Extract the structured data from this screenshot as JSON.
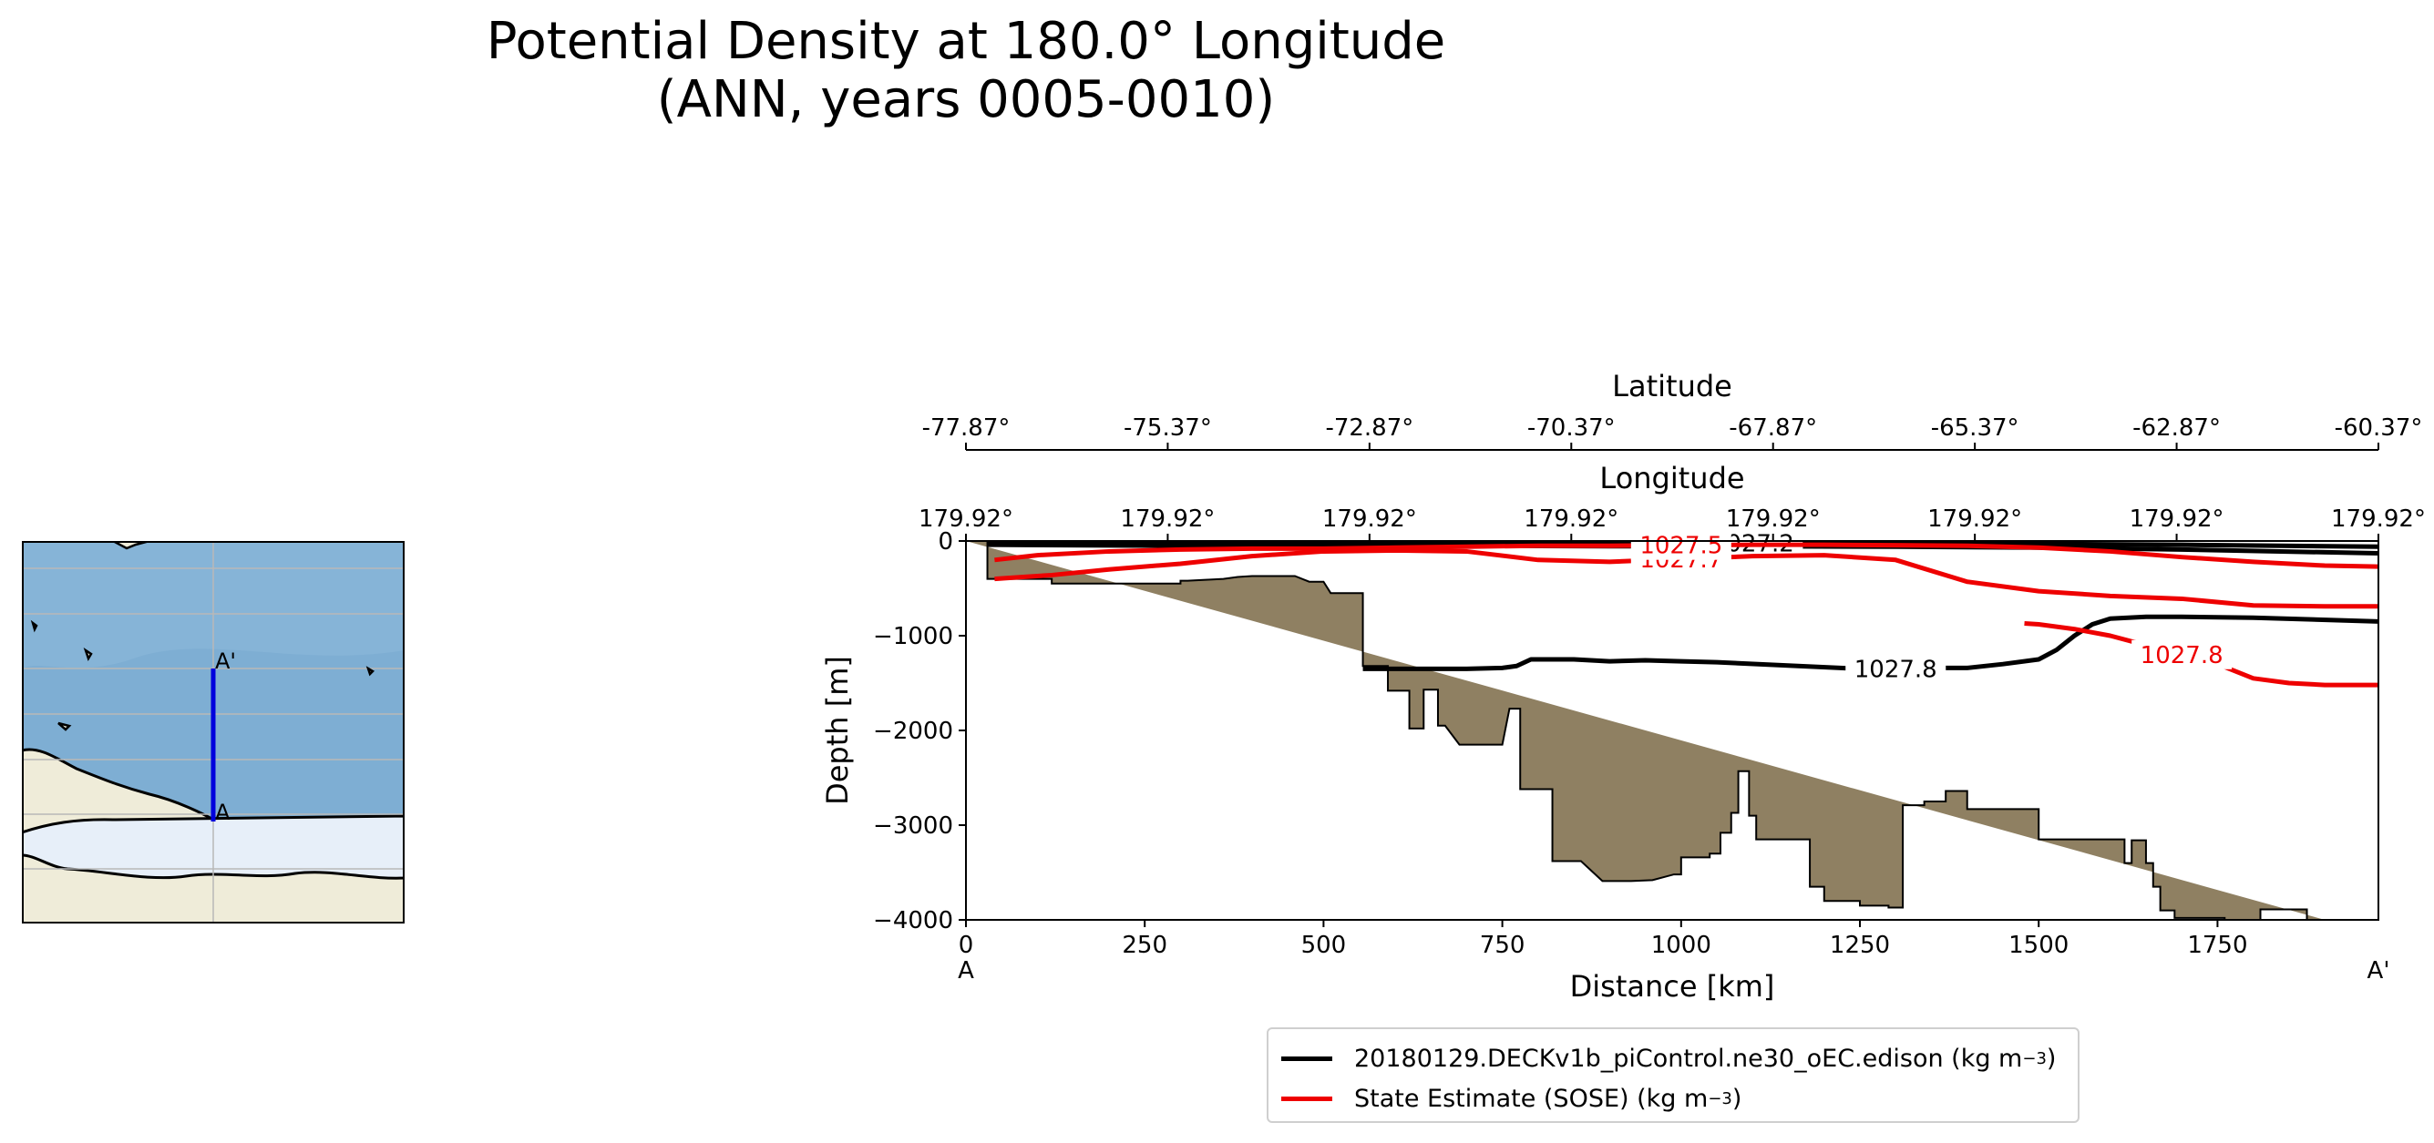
{
  "title": {
    "line1": "Potential Density at 180.0° Longitude",
    "line2": "(ANN, years 0005-0010)"
  },
  "inset_map": {
    "label_start": "A",
    "label_end": "A'",
    "colors": {
      "ocean": "#7eaed3",
      "land": "#efecd9",
      "ice": "#e7eff9",
      "section": "#0000dd"
    }
  },
  "chart_data": {
    "type": "line",
    "title": "Potential Density at 180.0° Longitude (ANN, years 0005-0010)",
    "xlabel": "Distance [km]",
    "ylabel": "Depth [m]",
    "xlim": [
      0,
      1975
    ],
    "ylim": [
      -4000,
      0
    ],
    "xticks": [
      0,
      250,
      500,
      750,
      1000,
      1250,
      1500,
      1750
    ],
    "yticks": [
      0,
      -1000,
      -2000,
      -3000,
      -4000
    ],
    "ytick_labels": [
      "0",
      "−1000",
      "−2000",
      "−3000",
      "−4000"
    ],
    "x_end_labels": {
      "start": "A",
      "end": "A'"
    },
    "secondary_axes": [
      {
        "label": "Longitude",
        "ticks": [
          "179.92°",
          "179.92°",
          "179.92°",
          "179.92°",
          "179.92°",
          "179.92°",
          "179.92°",
          "179.92°"
        ]
      },
      {
        "label": "Latitude",
        "ticks": [
          "-77.87°",
          "-75.37°",
          "-72.87°",
          "-70.37°",
          "-67.87°",
          "-65.37°",
          "-62.87°",
          "-60.37°"
        ]
      }
    ],
    "bathymetry": {
      "color": "#8f8062",
      "x": [
        0,
        10,
        30,
        30,
        120,
        120,
        300,
        300,
        310,
        360,
        380,
        400,
        460,
        480,
        500,
        510,
        555,
        555,
        590,
        590,
        620,
        620,
        640,
        640,
        660,
        660,
        670,
        690,
        750,
        750,
        760,
        765,
        775,
        775,
        780,
        780,
        820,
        820,
        860,
        890,
        930,
        960,
        990,
        1000,
        1000,
        1040,
        1040,
        1055,
        1055,
        1070,
        1070,
        1080,
        1080,
        1095,
        1095,
        1105,
        1105,
        1180,
        1180,
        1200,
        1200,
        1250,
        1250,
        1290,
        1290,
        1310,
        1310,
        1340,
        1340,
        1370,
        1370,
        1400,
        1400,
        1430,
        1430,
        1500,
        1500,
        1620,
        1620,
        1630,
        1630,
        1650,
        1650,
        1660,
        1660,
        1670,
        1670,
        1690,
        1690,
        1760,
        1760,
        1810,
        1810,
        1875,
        1875,
        1900,
        1900,
        1975
      ],
      "depth": [
        0,
        0,
        0,
        -400,
        -400,
        -450,
        -450,
        -420,
        -420,
        -400,
        -380,
        -370,
        -370,
        -430,
        -430,
        -550,
        -550,
        -1320,
        -1320,
        -1580,
        -1580,
        -1980,
        -1980,
        -1570,
        -1570,
        -1950,
        -1950,
        -2150,
        -2150,
        -2150,
        -1770,
        -1770,
        -1770,
        -2620,
        -2620,
        -2620,
        -2620,
        -3380,
        -3380,
        -3590,
        -3590,
        -3580,
        -3520,
        -3520,
        -3340,
        -3340,
        -3300,
        -3300,
        -3080,
        -3080,
        -2870,
        -2870,
        -2430,
        -2430,
        -2900,
        -2900,
        -3150,
        -3150,
        -3650,
        -3650,
        -3800,
        -3800,
        -3850,
        -3850,
        -3870,
        -3870,
        -2790,
        -2790,
        -2750,
        -2750,
        -2640,
        -2640,
        -2830,
        -2830,
        -2830,
        -2830,
        -3150,
        -3150,
        -3400,
        -3400,
        -3160,
        -3160,
        -3400,
        -3400,
        -3650,
        -3650,
        -3900,
        -3900,
        -3980,
        -3980,
        -4000,
        -4000,
        -3890,
        -3890,
        -4000,
        -4000,
        -4000
      ]
    },
    "series": [
      {
        "name": "20180129.DECKv1b_piControl.ne30_oEC.edison",
        "legend_label": "20180129.DECKv1b_piControl.ne30_oEC.edison (kg m",
        "color": "#000000",
        "contours": [
          {
            "level": 1027.8,
            "label": "1027.8",
            "x": [
              555,
              650,
              700,
              750,
              770,
              790,
              850,
              900,
              950,
              1000,
              1050,
              1250,
              1300,
              1350,
              1400,
              1450,
              1500,
              1525,
              1550,
              1575,
              1600,
              1650,
              1700,
              1800,
              1975
            ],
            "depth": [
              -1350,
              -1350,
              -1350,
              -1340,
              -1320,
              -1250,
              -1250,
              -1270,
              -1260,
              -1270,
              -1280,
              -1350,
              -1350,
              -1340,
              -1340,
              -1300,
              -1250,
              -1150,
              -1000,
              -880,
              -820,
              -800,
              -800,
              -810,
              -850
            ]
          },
          {
            "level": 1027.5,
            "label": "1027.5",
            "x": [
              30,
              300,
              500,
              700,
              900,
              1100,
              1300,
              1500,
              1700,
              1975
            ],
            "depth": [
              -40,
              -50,
              -50,
              -50,
              -55,
              -55,
              -60,
              -70,
              -90,
              -130
            ]
          },
          {
            "level": 1027.2,
            "label": "1027.2",
            "x": [
              30,
              300,
              500,
              700,
              900,
              1100,
              1300,
              1500,
              1700,
              1975
            ],
            "depth": [
              -20,
              -25,
              -25,
              -25,
              -25,
              -25,
              -25,
              -30,
              -40,
              -60
            ]
          }
        ]
      },
      {
        "name": "State Estimate (SOSE)",
        "legend_label": "State Estimate (SOSE) (kg m",
        "color": "#ee0000",
        "contours": [
          {
            "level": 1027.8,
            "label": "1027.8",
            "x": [
              1480,
              1500,
              1550,
              1600,
              1650,
              1700,
              1750,
              1800,
              1850,
              1900,
              1975
            ],
            "depth": [
              -870,
              -880,
              -930,
              -1000,
              -1100,
              -1200,
              -1300,
              -1450,
              -1500,
              -1520,
              -1520
            ]
          },
          {
            "level": 1027.7,
            "label": "1027.7",
            "x": [
              40,
              80,
              120,
              200,
              300,
              400,
              500,
              600,
              700,
              800,
              900,
              1000,
              1100,
              1200,
              1300,
              1400,
              1500,
              1600,
              1700,
              1800,
              1900,
              1975
            ],
            "depth": [
              -400,
              -380,
              -360,
              -300,
              -240,
              -160,
              -110,
              -100,
              -110,
              -200,
              -220,
              -190,
              -160,
              -150,
              -200,
              -430,
              -530,
              -580,
              -610,
              -680,
              -690,
              -690
            ]
          },
          {
            "level": 1027.5,
            "label": "1027.5",
            "x": [
              40,
              100,
              200,
              300,
              400,
              500,
              600,
              700,
              800,
              900,
              1000,
              1100,
              1200,
              1300,
              1400,
              1500,
              1600,
              1700,
              1800,
              1900,
              1975
            ],
            "depth": [
              -200,
              -150,
              -110,
              -90,
              -80,
              -80,
              -70,
              -60,
              -50,
              -50,
              -45,
              -40,
              -40,
              -45,
              -50,
              -70,
              -110,
              -170,
              -220,
              -260,
              -270
            ]
          }
        ]
      }
    ],
    "legend_position": "bottom-center"
  }
}
